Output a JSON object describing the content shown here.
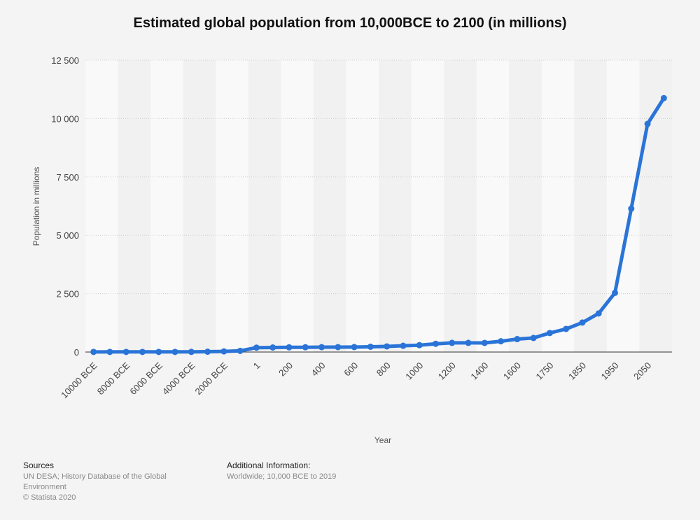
{
  "chart_data": {
    "type": "line",
    "title": "Estimated global population from 10,000BCE to 2100 (in millions)",
    "xlabel": "Year",
    "ylabel": "Population in millions",
    "ylim": [
      0,
      12500
    ],
    "yticks": [
      0,
      2500,
      5000,
      7500,
      10000,
      12500
    ],
    "ytick_labels": [
      "0",
      "2 500",
      "5 000",
      "7 500",
      "10 000",
      "12 500"
    ],
    "grid": true,
    "legend": "none",
    "color": "#2a74d8",
    "x": [
      "10000 BCE",
      "9000 BCE",
      "8000 BCE",
      "7000 BCE",
      "6000 BCE",
      "5000 BCE",
      "4000 BCE",
      "3000 BCE",
      "2000 BCE",
      "1000 BCE",
      "1",
      "100",
      "200",
      "300",
      "400",
      "500",
      "600",
      "700",
      "800",
      "900",
      "1000",
      "1100",
      "1200",
      "1300",
      "1400",
      "1500",
      "1600",
      "1700",
      "1750",
      "1800",
      "1850",
      "1900",
      "1950",
      "2000",
      "2050",
      "2100"
    ],
    "x_tick_labels_shown": [
      "10000 BCE",
      "8000 BCE",
      "6000 BCE",
      "4000 BCE",
      "2000 BCE",
      "1",
      "200",
      "400",
      "600",
      "800",
      "1000",
      "1200",
      "1400",
      "1600",
      "1750",
      "1850",
      "1950",
      "2050"
    ],
    "series": [
      {
        "values": [
          4,
          5,
          5,
          5,
          5,
          5,
          7,
          14,
          27,
          50,
          188,
          195,
          202,
          205,
          209,
          210,
          213,
          226,
          240,
          269,
          295,
          353,
          393,
          392,
          390,
          461,
          554,
          603,
          814,
          990,
          1263,
          1654,
          2536,
          6143,
          9771,
          10875
        ]
      }
    ]
  },
  "footer": {
    "sources_heading": "Sources",
    "sources_lines": [
      "UN DESA; History Database of the Global",
      "Environment",
      "© Statista 2020"
    ],
    "info_heading": "Additional Information:",
    "info_text": "Worldwide; 10,000 BCE to 2019"
  }
}
